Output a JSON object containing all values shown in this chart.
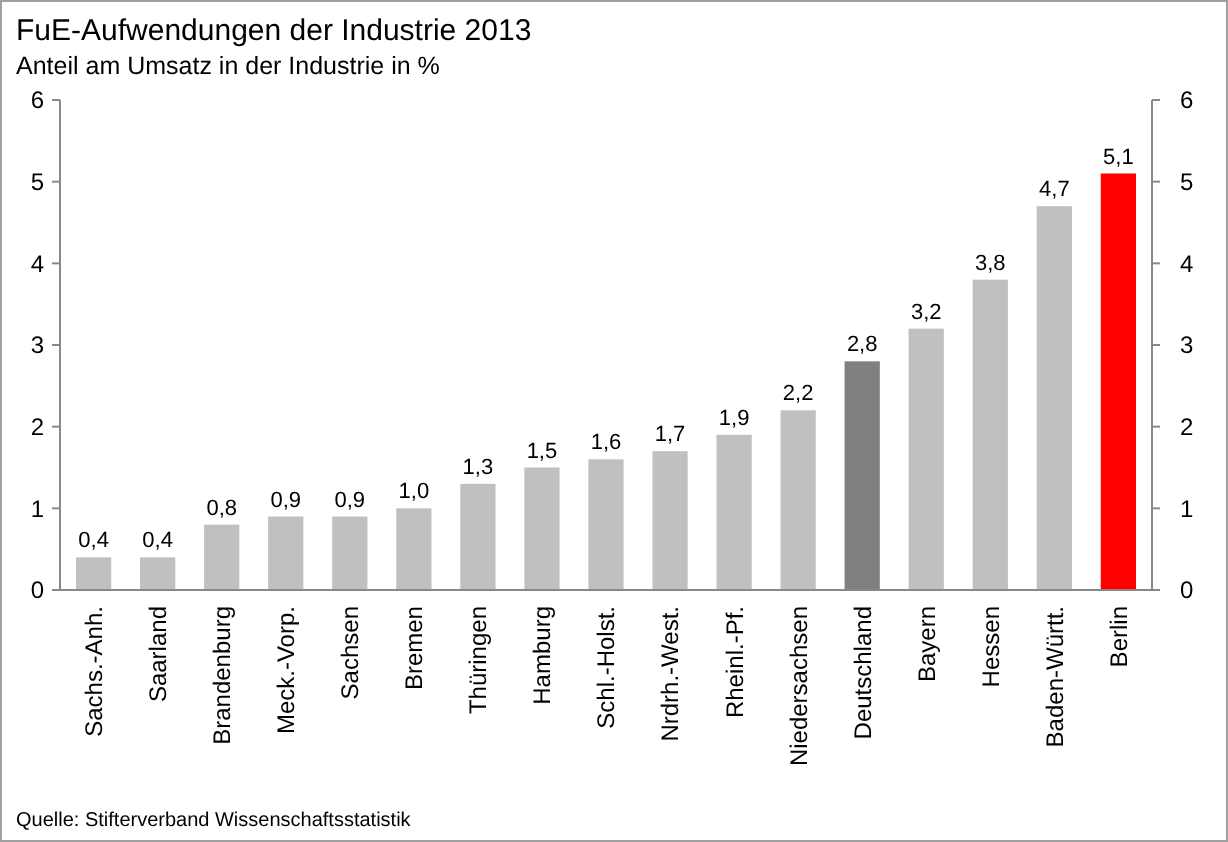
{
  "chart_data": {
    "type": "bar",
    "title": "FuE-Aufwendungen der Industrie 2013",
    "subtitle": "Anteil am Umsatz in der Industrie in %",
    "categories": [
      "Sachs.-Anh.",
      "Saarland",
      "Brandenburg",
      "Meck.-Vorp.",
      "Sachsen",
      "Bremen",
      "Thüringen",
      "Hamburg",
      "Schl.-Holst.",
      "Nrdrh.-West.",
      "Rheinl.-Pf.",
      "Niedersachsen",
      "Deutschland",
      "Bayern",
      "Hessen",
      "Baden-Württ.",
      "Berlin"
    ],
    "values": [
      0.4,
      0.4,
      0.8,
      0.9,
      0.9,
      1.0,
      1.3,
      1.5,
      1.6,
      1.7,
      1.9,
      2.2,
      2.8,
      3.2,
      3.8,
      4.7,
      5.1
    ],
    "value_labels": [
      "0,4",
      "0,4",
      "0,8",
      "0,9",
      "0,9",
      "1,0",
      "1,3",
      "1,5",
      "1,6",
      "1,7",
      "1,9",
      "2,2",
      "2,8",
      "3,2",
      "3,8",
      "4,7",
      "5,1"
    ],
    "colors": [
      "#c0c0c0",
      "#c0c0c0",
      "#c0c0c0",
      "#c0c0c0",
      "#c0c0c0",
      "#c0c0c0",
      "#c0c0c0",
      "#c0c0c0",
      "#c0c0c0",
      "#c0c0c0",
      "#c0c0c0",
      "#c0c0c0",
      "#808080",
      "#c0c0c0",
      "#c0c0c0",
      "#c0c0c0",
      "#ff0000"
    ],
    "ylim": [
      0,
      6
    ],
    "yticks": [
      0,
      1,
      2,
      3,
      4,
      5,
      6
    ],
    "y2lim": [
      0,
      6
    ],
    "y2ticks": [
      0,
      1,
      2,
      3,
      4,
      5,
      6
    ],
    "grid": false,
    "annotations": [
      "Quelle: Stifterverband Wissenschaftsstatistik"
    ]
  }
}
